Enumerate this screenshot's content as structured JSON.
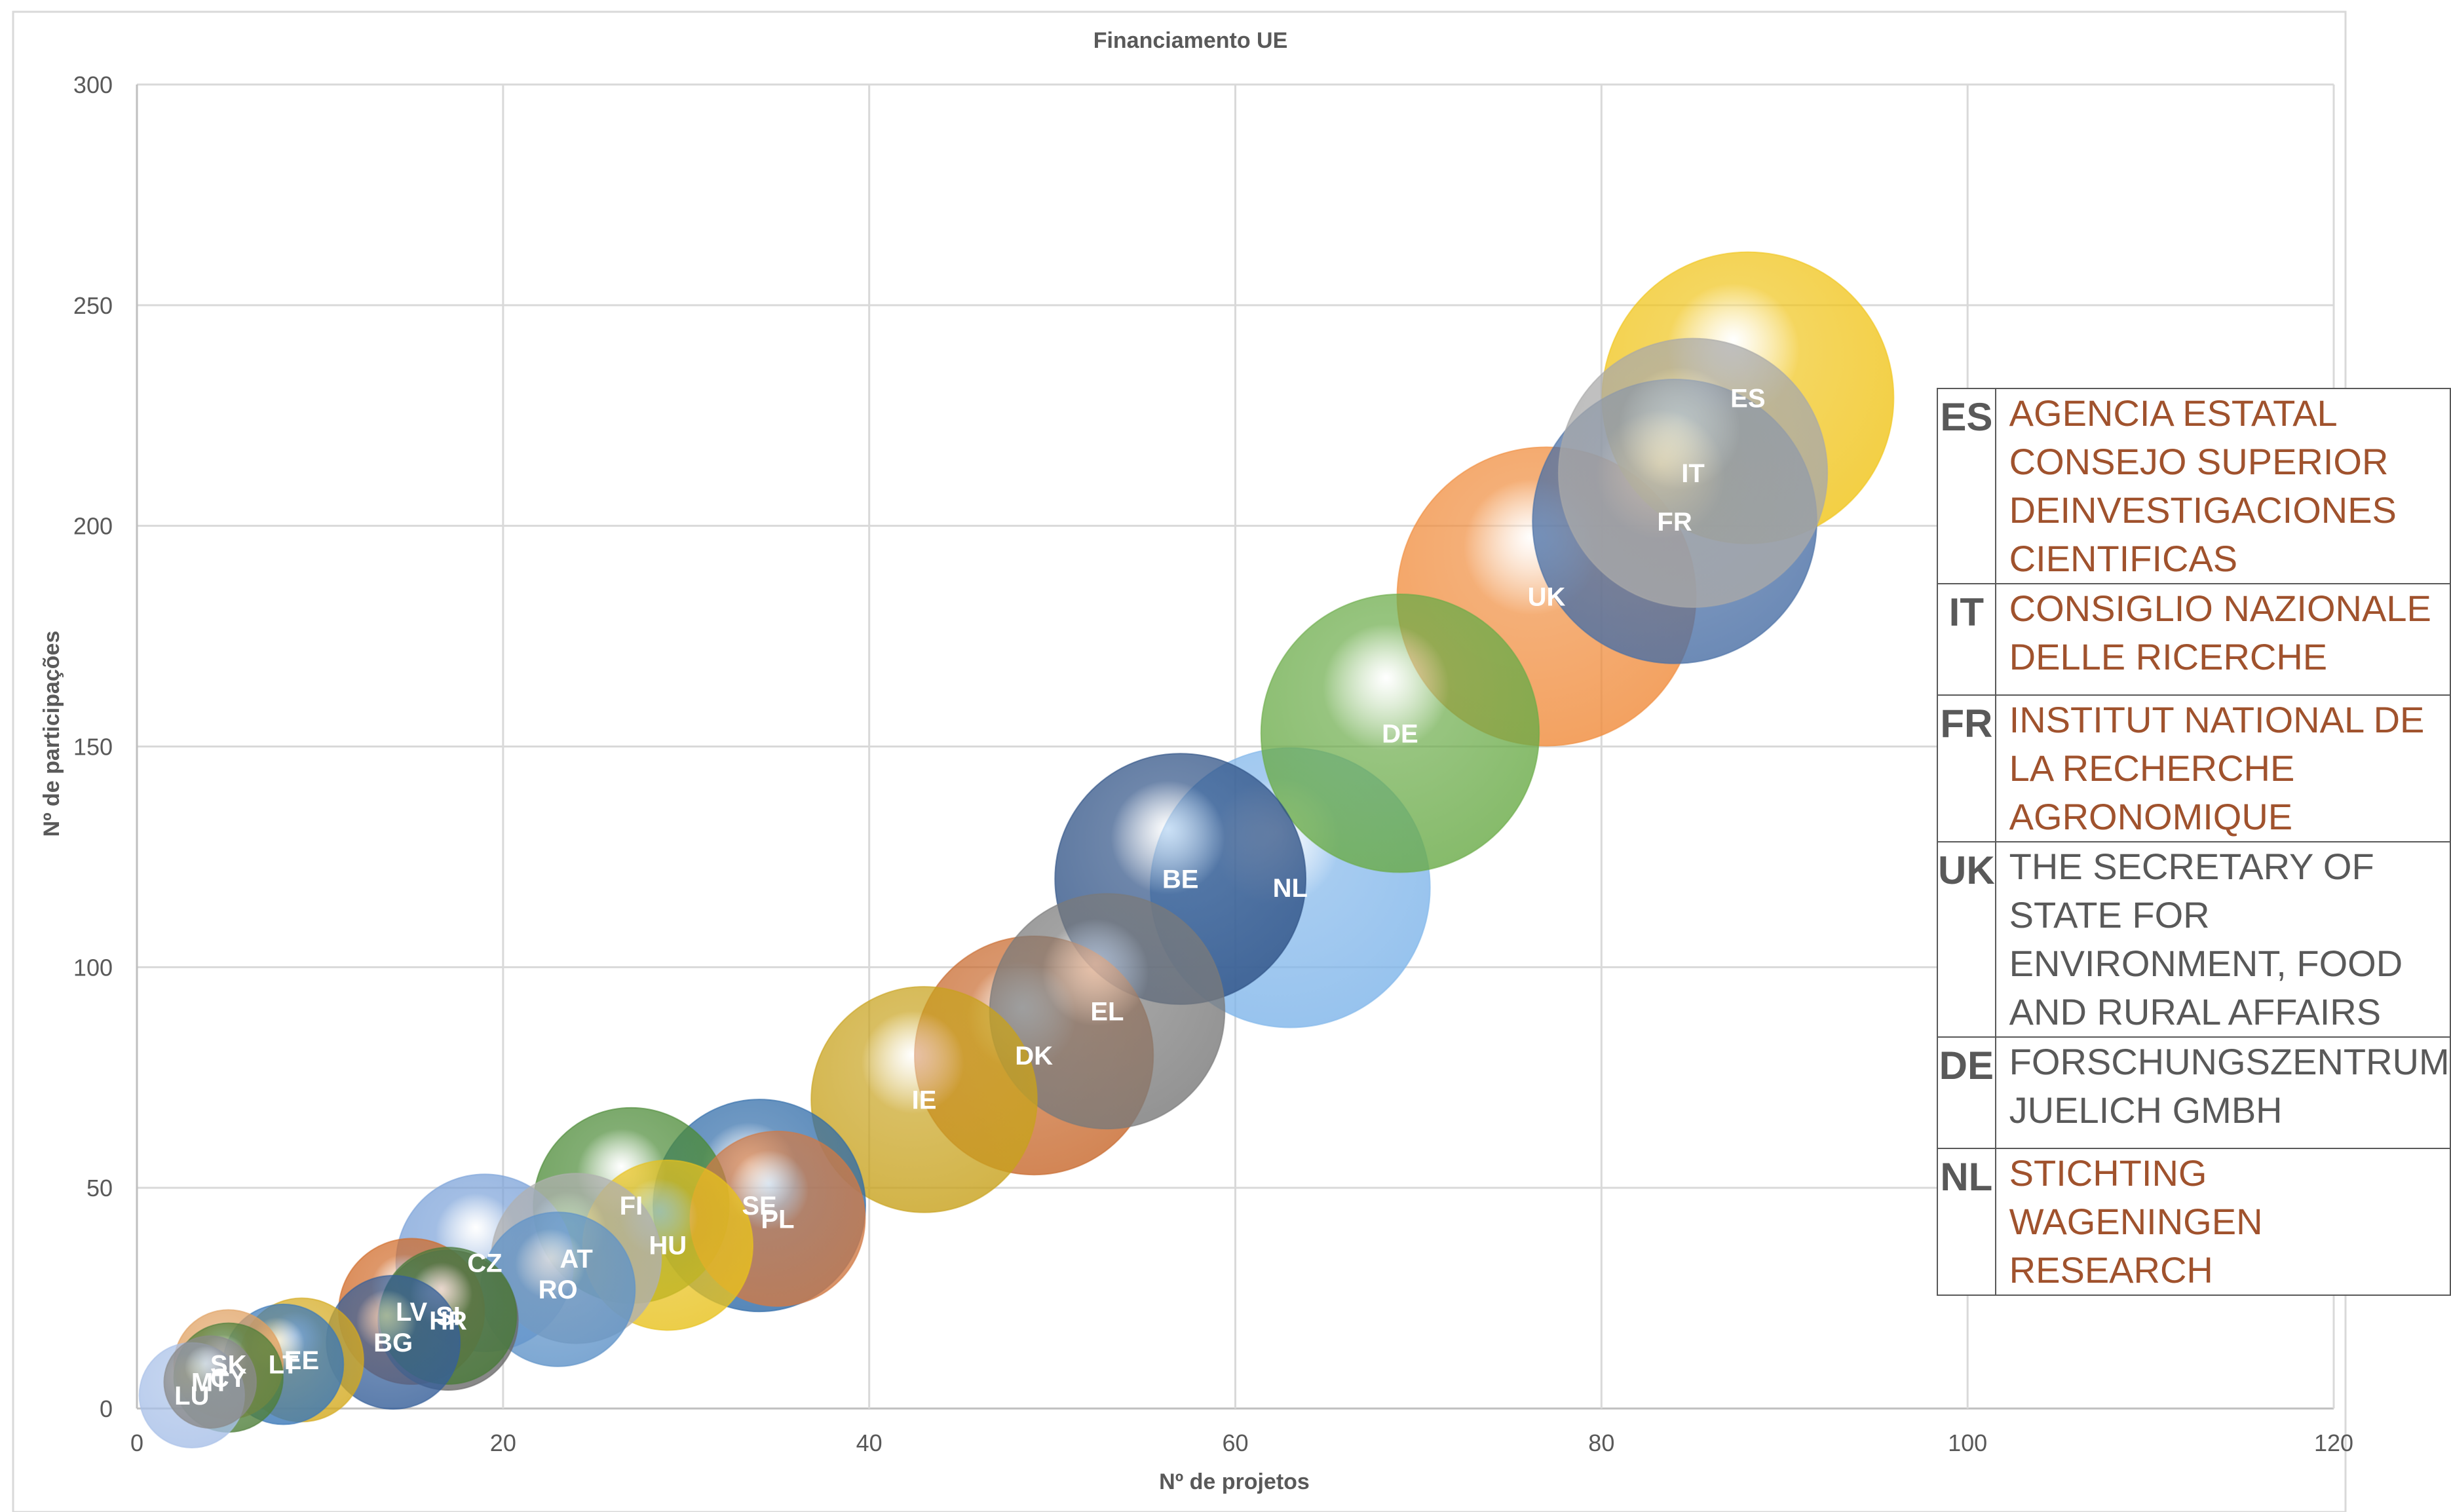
{
  "chart_data": {
    "type": "bubble",
    "title": "Financiamento UE",
    "xlabel": "Nº de projetos",
    "ylabel": "Nº de participações",
    "xlim": [
      0,
      120
    ],
    "ylim": [
      0,
      300
    ],
    "xticks": [
      "0",
      "20",
      "40",
      "60",
      "80",
      "100",
      "120"
    ],
    "yticks": [
      "0",
      "50",
      "100",
      "150",
      "200",
      "250",
      "300"
    ],
    "grid": true,
    "points": [
      {
        "label": "ES",
        "x": 88,
        "y": 229,
        "size": 100,
        "color": "#f0c419"
      },
      {
        "label": "FR",
        "x": 84,
        "y": 201,
        "size": 95,
        "color": "#4a6fa5"
      },
      {
        "label": "IT",
        "x": 85,
        "y": 212,
        "size": 85,
        "color": "#a9a9a9"
      },
      {
        "label": "UK",
        "x": 77,
        "y": 184,
        "size": 105,
        "color": "#f08c3c"
      },
      {
        "label": "DE",
        "x": 69,
        "y": 153,
        "size": 91,
        "color": "#6aab48"
      },
      {
        "label": "NL",
        "x": 63,
        "y": 118,
        "size": 92,
        "color": "#7fb5ea"
      },
      {
        "label": "BE",
        "x": 57,
        "y": 120,
        "size": 74,
        "color": "#2e5185"
      },
      {
        "label": "EL",
        "x": 53,
        "y": 90,
        "size": 65,
        "color": "#7a7a7a"
      },
      {
        "label": "DK",
        "x": 49,
        "y": 80,
        "size": 67,
        "color": "#c8692d"
      },
      {
        "label": "IE",
        "x": 43,
        "y": 70,
        "size": 60,
        "color": "#c8a21d"
      },
      {
        "label": "SE",
        "x": 34,
        "y": 46,
        "size": 53,
        "color": "#2f6ba8"
      },
      {
        "label": "PL",
        "x": 35,
        "y": 43,
        "size": 36,
        "color": "#d07a46"
      },
      {
        "label": "FI",
        "x": 27,
        "y": 46,
        "size": 45,
        "color": "#4b8a36"
      },
      {
        "label": "HU",
        "x": 29,
        "y": 37,
        "size": 34,
        "color": "#e8c21e"
      },
      {
        "label": "CZ",
        "x": 19,
        "y": 33,
        "size": 37,
        "color": "#7aa1d8"
      },
      {
        "label": "AT",
        "x": 24,
        "y": 34,
        "size": 34,
        "color": "#b0b0b0"
      },
      {
        "label": "RO",
        "x": 23,
        "y": 27,
        "size": 28,
        "color": "#5f93c8"
      },
      {
        "label": "LV",
        "x": 15,
        "y": 22,
        "size": 25,
        "color": "#d06a28"
      },
      {
        "label": "SI",
        "x": 17,
        "y": 21,
        "size": 22,
        "color": "#4a7a3a"
      },
      {
        "label": "HR",
        "x": 17,
        "y": 20,
        "size": 23,
        "color": "#6b6b6b"
      },
      {
        "label": "BG",
        "x": 14,
        "y": 15,
        "size": 21,
        "color": "#365f99"
      },
      {
        "label": "LT",
        "x": 8,
        "y": 10,
        "size": 17,
        "color": "#3a78b8"
      },
      {
        "label": "EE",
        "x": 9,
        "y": 11,
        "size": 18,
        "color": "#d4aa20"
      },
      {
        "label": "SK",
        "x": 5,
        "y": 10,
        "size": 14,
        "color": "#e0a060"
      },
      {
        "label": "MT",
        "x": 4,
        "y": 6,
        "size": 10,
        "color": "#8a8a8a"
      },
      {
        "label": "CY",
        "x": 5,
        "y": 7,
        "size": 14,
        "color": "#4f7f3a"
      },
      {
        "label": "LU",
        "x": 3,
        "y": 3,
        "size": 13,
        "color": "#a8c0e8"
      }
    ]
  },
  "institutions_table": {
    "rows": [
      {
        "code": "ES",
        "name": "AGENCIA ESTATAL CONSEJO SUPERIOR DEINVESTIGACIONES CIENTIFICAS",
        "color": "#a0522d"
      },
      {
        "code": "IT",
        "name": "CONSIGLIO NAZIONALE DELLE RICERCHE",
        "color": "#a0522d"
      },
      {
        "code": "FR",
        "name": "INSTITUT NATIONAL DE LA RECHERCHE AGRONOMIQUE",
        "color": "#a0522d"
      },
      {
        "code": "UK",
        "name": "THE SECRETARY OF STATE FOR ENVIRONMENT, FOOD AND RURAL AFFAIRS",
        "color": "#595959"
      },
      {
        "code": "DE",
        "name": "FORSCHUNGSZENTRUM JUELICH GMBH",
        "color": "#595959"
      },
      {
        "code": "NL",
        "name": "STICHTING WAGENINGEN RESEARCH",
        "color": "#a0522d"
      }
    ]
  }
}
